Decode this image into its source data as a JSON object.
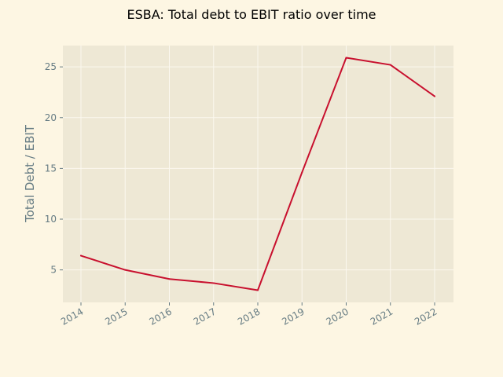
{
  "chart_data": {
    "type": "line",
    "title": "ESBA: Total debt to EBIT ratio over time",
    "xlabel": "",
    "ylabel": "Total Debt / EBIT",
    "x": [
      "2014",
      "2015",
      "2016",
      "2017",
      "2018",
      "2019",
      "2020",
      "2021",
      "2022"
    ],
    "series": [
      {
        "values": [
          6.4,
          5.0,
          4.1,
          3.7,
          3.0,
          14.6,
          25.9,
          25.2,
          22.1
        ]
      }
    ],
    "yticks": [
      5,
      10,
      15,
      20,
      25
    ],
    "ylim": [
      1.8,
      27.1
    ],
    "grid": true,
    "colors": {
      "figure_bg": "#fdf6e3",
      "axes_bg": "#eee8d5",
      "grid": "#fbf8ef",
      "line": "#c8102e",
      "tick_text": "#657b83"
    }
  }
}
